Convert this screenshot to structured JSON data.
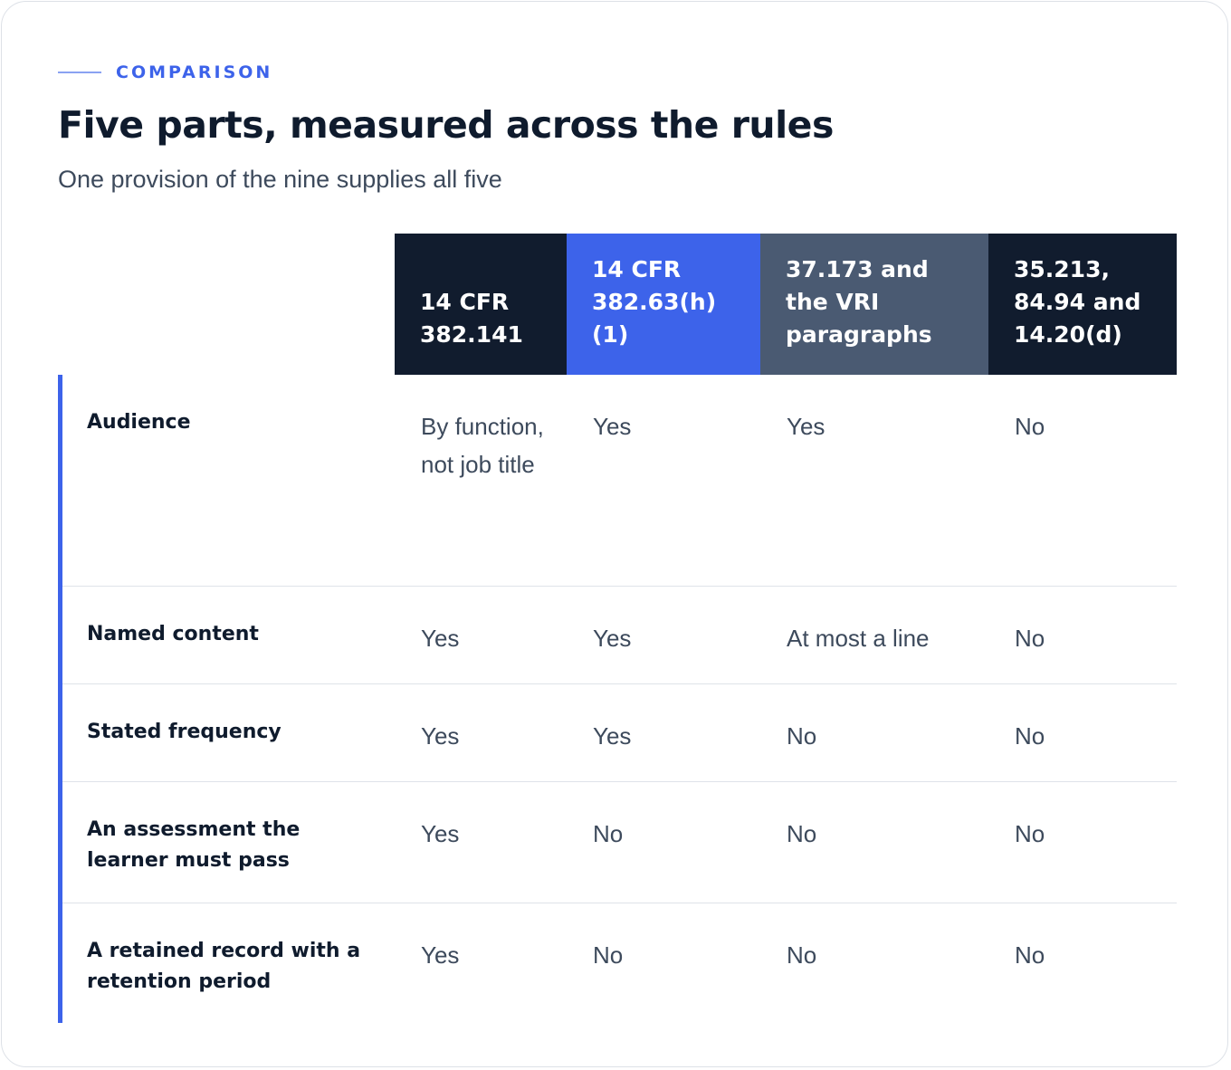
{
  "eyebrow": "COMPARISON",
  "title": "Five parts, measured across the rules",
  "subtitle": "One provision of the nine supplies all five",
  "colors": {
    "accent": "#3d63ea",
    "dark": "#111c2e",
    "slate": "#4a5a72"
  },
  "columns": [
    {
      "label": "14 CFR 382.141",
      "color": "#111c2e"
    },
    {
      "label": "14 CFR 382.63(h)(1)",
      "color": "#3d63ea"
    },
    {
      "label": "37.173 and the VRI paragraphs",
      "color": "#4a5a72"
    },
    {
      "label": "35.213, 84.94 and 14.20(d)",
      "color": "#111c2e"
    }
  ],
  "rows": [
    {
      "label": "Audience",
      "cells": [
        "By function, not job title",
        "Yes",
        "Yes",
        "No"
      ]
    },
    {
      "label": "Named content",
      "cells": [
        "Yes",
        "Yes",
        "At most a line",
        "No"
      ]
    },
    {
      "label": "Stated frequency",
      "cells": [
        "Yes",
        "Yes",
        "No",
        "No"
      ]
    },
    {
      "label": "An assessment the learner must pass",
      "cells": [
        "Yes",
        "No",
        "No",
        "No"
      ]
    },
    {
      "label": "A retained record with a retention period",
      "cells": [
        "Yes",
        "No",
        "No",
        "No"
      ]
    }
  ]
}
